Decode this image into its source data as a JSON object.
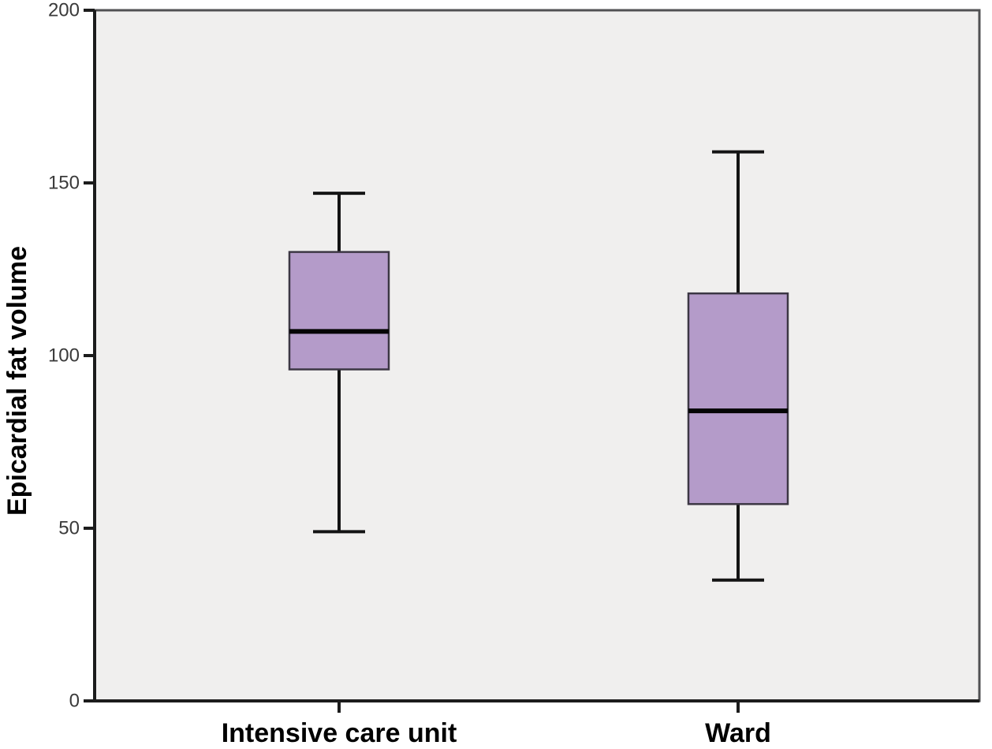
{
  "chart_data": {
    "type": "boxplot",
    "title": "",
    "xlabel": "",
    "ylabel": "Epicardial fat volume",
    "ylim": [
      0,
      200
    ],
    "yticks": [
      0,
      50,
      100,
      150,
      200
    ],
    "categories": [
      "Intensive care unit",
      "Ward"
    ],
    "series": [
      {
        "name": "Intensive care unit",
        "min": 49,
        "q1": 96,
        "median": 107,
        "q3": 130,
        "max": 147
      },
      {
        "name": "Ward",
        "min": 35,
        "q1": 57,
        "median": 84,
        "q3": 118,
        "max": 159
      }
    ],
    "grid": false,
    "legend": "none",
    "colors": {
      "box_fill": "#b49bc9",
      "box_border": "#3c3744",
      "median": "#050505",
      "whisker": "#141414",
      "plot_background": "#f0efee",
      "frame": "#515153",
      "axis": "#1c1c1c",
      "tick_label": "#3a3a3a",
      "category_label": "#000000"
    }
  }
}
